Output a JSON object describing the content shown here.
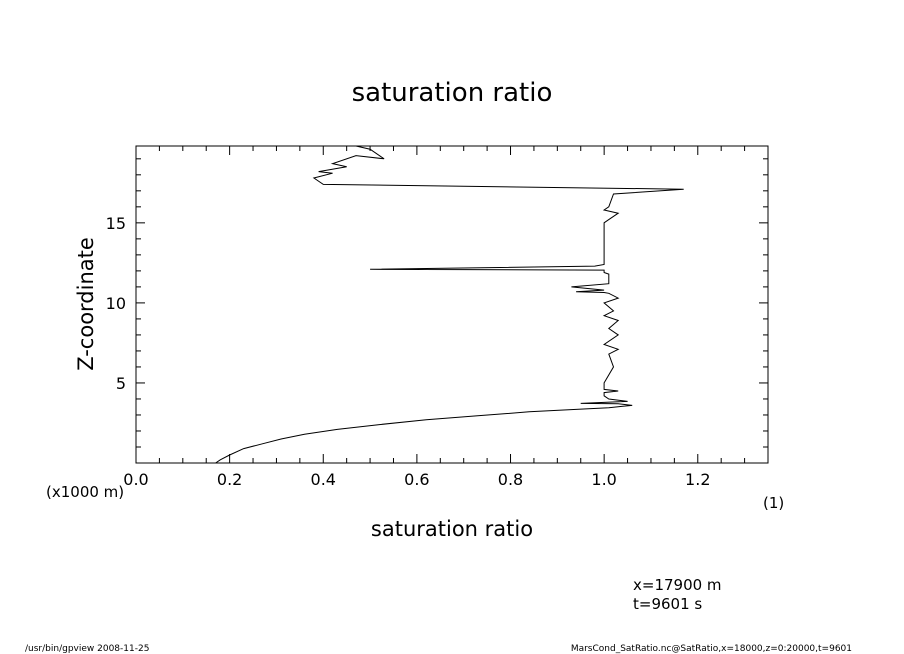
{
  "chart_data": {
    "type": "line",
    "title": "saturation ratio",
    "xlabel": "saturation ratio",
    "ylabel": "Z-coordinate",
    "x_unit_label": "(1)",
    "y_unit_label": "(x1000 m)",
    "xlim": [
      0.0,
      1.35
    ],
    "ylim": [
      0.0,
      19.8
    ],
    "x_ticks": [
      0.0,
      0.2,
      0.4,
      0.6,
      0.8,
      1.0,
      1.2
    ],
    "x_tick_labels": [
      "0.0",
      "0.2",
      "0.4",
      "0.6",
      "0.8",
      "1.0",
      "1.2"
    ],
    "y_ticks": [
      5,
      10,
      15
    ],
    "y_tick_labels": [
      "5",
      "10",
      "15"
    ],
    "grid": false,
    "series": [
      {
        "x": [
          0.17,
          0.18,
          0.2,
          0.23,
          0.27,
          0.31,
          0.36,
          0.43,
          0.52,
          0.62,
          0.73,
          0.84,
          0.94,
          1.01,
          1.04,
          1.06,
          1.03,
          0.95,
          1.05,
          1.01,
          1.0,
          1.0,
          1.03,
          1.0,
          1.0,
          1.02,
          1.01,
          1.03,
          1.0,
          1.03,
          1.01,
          1.03,
          1.0,
          1.02,
          1.0,
          1.03,
          1.01,
          1.0,
          0.94,
          1.0,
          0.93,
          1.01,
          1.01,
          1.0,
          1.0,
          0.5,
          0.98,
          1.0,
          1.0,
          1.0,
          1.01,
          1.03,
          1.0,
          1.01,
          1.02,
          1.17,
          0.4,
          0.38,
          0.42,
          0.39,
          0.45,
          0.42,
          0.47,
          0.53,
          0.5,
          0.47
        ],
        "y": [
          0.0,
          0.2,
          0.5,
          0.9,
          1.2,
          1.5,
          1.8,
          2.1,
          2.4,
          2.7,
          2.95,
          3.2,
          3.35,
          3.45,
          3.55,
          3.6,
          3.7,
          3.72,
          3.85,
          4.0,
          4.2,
          4.4,
          4.5,
          4.6,
          5.0,
          6.0,
          6.8,
          7.1,
          7.4,
          8.0,
          8.4,
          8.9,
          9.2,
          9.5,
          10.0,
          10.3,
          10.6,
          10.65,
          10.7,
          10.8,
          11.0,
          11.2,
          11.8,
          11.9,
          12.05,
          12.1,
          12.3,
          12.4,
          13.0,
          15.0,
          15.2,
          15.6,
          15.8,
          16.0,
          16.8,
          17.1,
          17.4,
          17.8,
          18.1,
          18.2,
          18.5,
          18.7,
          19.2,
          19.0,
          19.6,
          19.8
        ]
      }
    ]
  },
  "footer": {
    "coord_x": "x=17900 m",
    "coord_t": "t=9601 s",
    "left_note": "/usr/bin/gpview   2008-11-25",
    "right_note": "MarsCond_SatRatio.nc@SatRatio,x=18000,z=0:20000,t=9601"
  }
}
